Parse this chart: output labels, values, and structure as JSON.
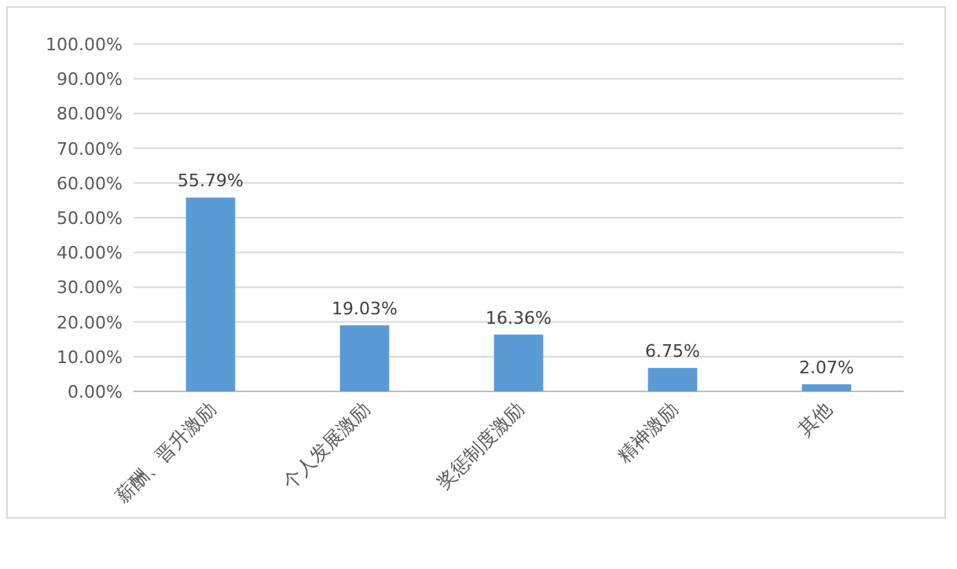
{
  "chart_data": {
    "type": "bar",
    "categories": [
      "薪酬、晋升激励",
      "个人发展激励",
      "奖惩制度激励",
      "精神激励",
      "其他"
    ],
    "values": [
      55.79,
      19.03,
      16.36,
      6.75,
      2.07
    ],
    "value_labels": [
      "55.79%",
      "19.03%",
      "16.36%",
      "6.75%",
      "2.07%"
    ],
    "color": "#5b9bd5",
    "ylim": [
      0,
      100
    ],
    "yticks": [
      {
        "value": 0,
        "label": "0.00%"
      },
      {
        "value": 10,
        "label": "10.00%"
      },
      {
        "value": 20,
        "label": "20.00%"
      },
      {
        "value": 30,
        "label": "30.00%"
      },
      {
        "value": 40,
        "label": "40.00%"
      },
      {
        "value": 50,
        "label": "50.00%"
      },
      {
        "value": 60,
        "label": "60.00%"
      },
      {
        "value": 70,
        "label": "70.00%"
      },
      {
        "value": 80,
        "label": "80.00%"
      },
      {
        "value": 90,
        "label": "90.00%"
      },
      {
        "value": 100,
        "label": "100.00%"
      }
    ],
    "grid": "y"
  }
}
